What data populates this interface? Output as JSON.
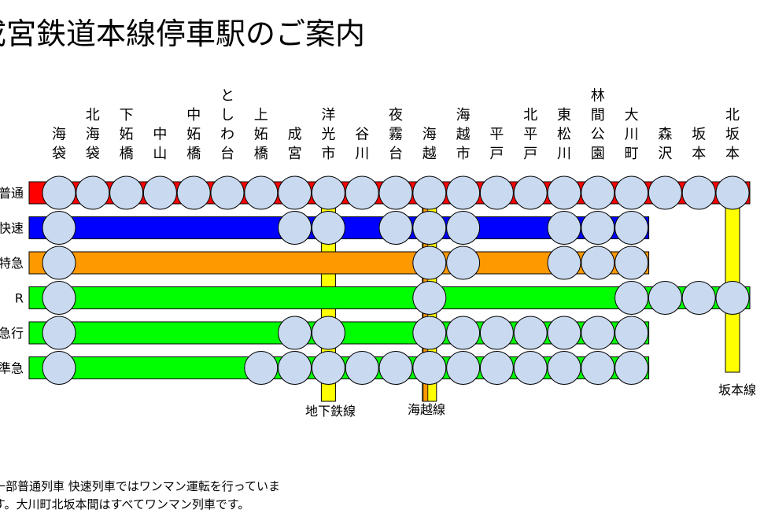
{
  "title": "成宮鉄道本線停車駅のご案内",
  "stations": [
    "海袋",
    "北海袋",
    "下妬橋",
    "中山",
    "中妬橋",
    "としわ台",
    "上妬橋",
    "成宮",
    "洋光市",
    "谷川",
    "夜霧台",
    "海越",
    "海越市",
    "平戸",
    "北平戸",
    "東松川",
    "林間公園",
    "大川町",
    "森沢",
    "坂本",
    "北坂本"
  ],
  "services": [
    {
      "label": "普通",
      "color": "#ff0000",
      "stops": [
        0,
        1,
        2,
        3,
        4,
        5,
        6,
        7,
        8,
        9,
        10,
        11,
        12,
        13,
        14,
        15,
        16,
        17,
        18,
        19,
        20
      ],
      "bar": [
        0,
        20
      ]
    },
    {
      "label": "快速",
      "color": "#0000ff",
      "stops": [
        0,
        7,
        8,
        10,
        11,
        12,
        15,
        16,
        17
      ],
      "bar": [
        0,
        17
      ]
    },
    {
      "label": "成宮特急",
      "color": "#ff9900",
      "stops": [
        0,
        11,
        12,
        15,
        16,
        17
      ],
      "bar": [
        0,
        17
      ]
    },
    {
      "label": "R",
      "color": "#00ff00",
      "stops": [
        0,
        11,
        17,
        18,
        19,
        20
      ],
      "bar": [
        0,
        20
      ]
    },
    {
      "label": "急行",
      "color": "#00ff00",
      "stops": [
        0,
        7,
        8,
        11,
        12,
        13,
        14,
        15,
        16,
        17
      ],
      "bar": [
        0,
        17
      ]
    },
    {
      "label": "準急",
      "color": "#00ff00",
      "stops": [
        0,
        6,
        7,
        8,
        9,
        10,
        11,
        12,
        13,
        14,
        15,
        16,
        17
      ],
      "bar": [
        0,
        17
      ]
    }
  ],
  "connections": [
    {
      "label": "地下鉄線",
      "station": 8,
      "color": "#ffff00"
    },
    {
      "label": "海越線",
      "station": 11,
      "color": "#ffff00",
      "inner_color": "#ff9900"
    },
    {
      "label": "坂本線",
      "station": 20,
      "color": "#ffff00"
    }
  ],
  "notes": [
    "一部普通列車 快速列車ではワンマン運転を行っていま",
    "す。大川町北坂本間はすべてワンマン列車です。"
  ],
  "colors": {
    "stop": "#c9daf0",
    "outline": "#000000"
  }
}
